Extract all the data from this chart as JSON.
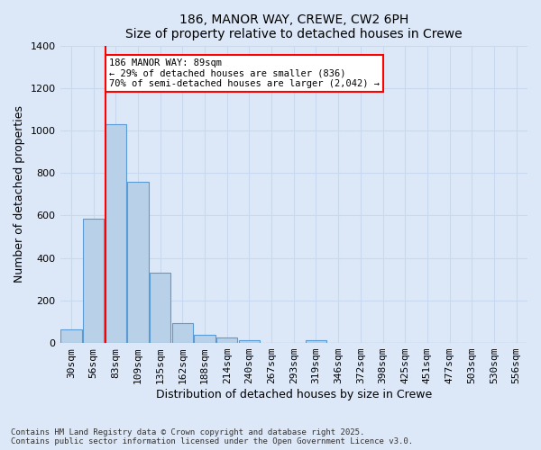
{
  "title1": "186, MANOR WAY, CREWE, CW2 6PH",
  "title2": "Size of property relative to detached houses in Crewe",
  "xlabel": "Distribution of detached houses by size in Crewe",
  "ylabel": "Number of detached properties",
  "bar_color": "#b8d0e8",
  "bar_edge_color": "#5b9bd5",
  "bg_color": "#dce8f8",
  "grid_color": "#c8d8ee",
  "categories": [
    "30sqm",
    "56sqm",
    "83sqm",
    "109sqm",
    "135sqm",
    "162sqm",
    "188sqm",
    "214sqm",
    "240sqm",
    "267sqm",
    "293sqm",
    "319sqm",
    "346sqm",
    "372sqm",
    "398sqm",
    "425sqm",
    "451sqm",
    "477sqm",
    "503sqm",
    "530sqm",
    "556sqm"
  ],
  "values": [
    65,
    585,
    1030,
    760,
    330,
    95,
    38,
    25,
    15,
    0,
    0,
    15,
    0,
    0,
    0,
    0,
    0,
    0,
    0,
    0,
    0
  ],
  "ylim": [
    0,
    1400
  ],
  "yticks": [
    0,
    200,
    400,
    600,
    800,
    1000,
    1200,
    1400
  ],
  "red_line_index": 2,
  "annotation_text": "186 MANOR WAY: 89sqm\n← 29% of detached houses are smaller (836)\n70% of semi-detached houses are larger (2,042) →",
  "annotation_box_facecolor": "white",
  "annotation_box_edgecolor": "red",
  "footer_text": "Contains HM Land Registry data © Crown copyright and database right 2025.\nContains public sector information licensed under the Open Government Licence v3.0.",
  "figsize": [
    6.0,
    5.0
  ],
  "dpi": 100
}
